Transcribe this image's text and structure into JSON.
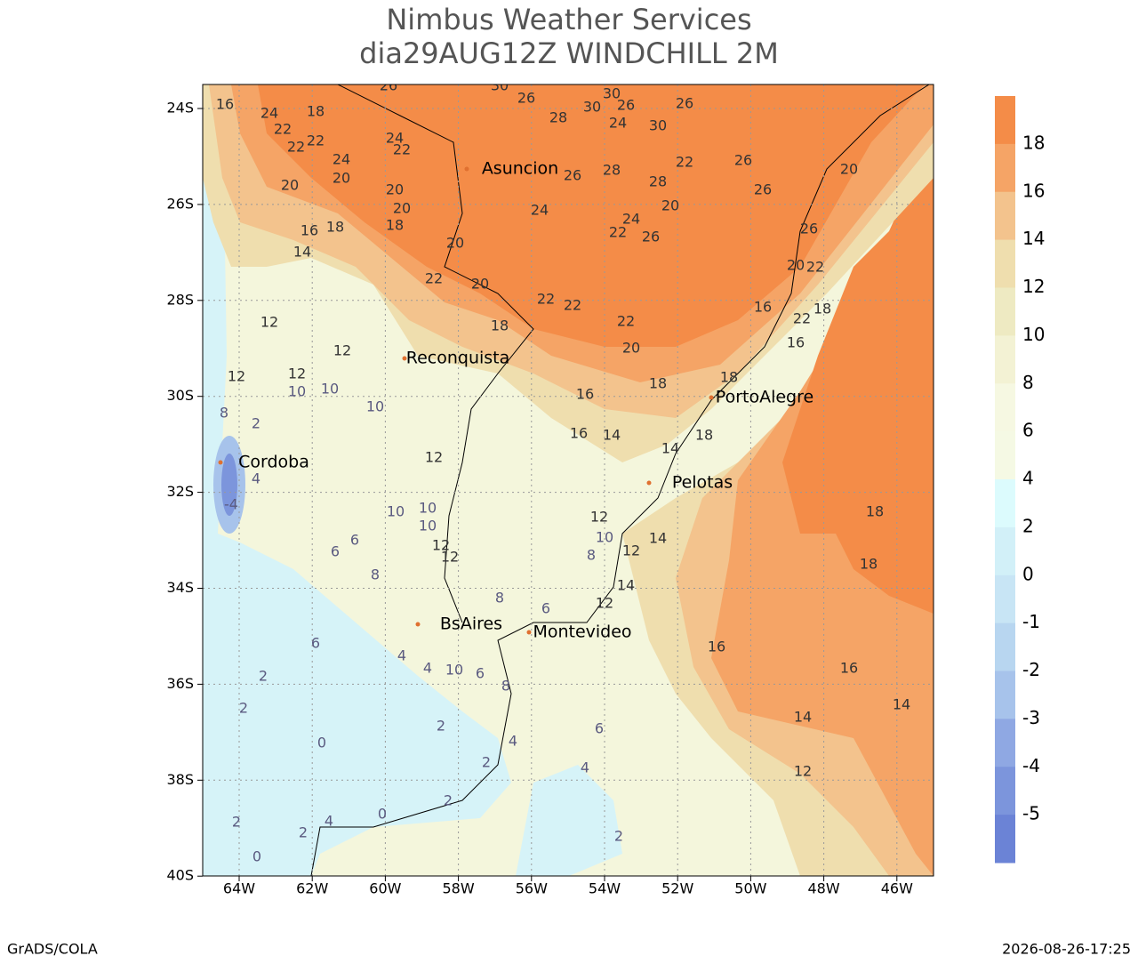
{
  "header": {
    "title": "Nimbus Weather Services",
    "subtitle": "dia29AUG12Z WINDCHILL 2M"
  },
  "map": {
    "lat_ticks": [
      "24S",
      "26S",
      "28S",
      "30S",
      "32S",
      "34S",
      "36S",
      "38S",
      "40S"
    ],
    "lon_ticks": [
      "64W",
      "62W",
      "60W",
      "58W",
      "56W",
      "54W",
      "52W",
      "50W",
      "48W",
      "46W"
    ],
    "cities": [
      "Asuncion",
      "Reconquista",
      "PortoAlegre",
      "Cordoba",
      "Pelotas",
      "BsAires",
      "Montevideo"
    ],
    "contour_labels": [
      26,
      30,
      26,
      30,
      30,
      26,
      24,
      26,
      30,
      28,
      24,
      18,
      16,
      22,
      22,
      22,
      24,
      22,
      24,
      20,
      20,
      20,
      20,
      18,
      24,
      26,
      28,
      28,
      22,
      26,
      26,
      24,
      22,
      26,
      20,
      20,
      22,
      20,
      22,
      22,
      18,
      22,
      20,
      16,
      22,
      18,
      16,
      20,
      26,
      20,
      22,
      16,
      18,
      14,
      12,
      12,
      12,
      12,
      10,
      10,
      10,
      8,
      12,
      16,
      18,
      18,
      16,
      14,
      14,
      18,
      10,
      10,
      10,
      12,
      12,
      6,
      6,
      8,
      12,
      10,
      14,
      12,
      8,
      14,
      12,
      8,
      6,
      6,
      4,
      4,
      10,
      6,
      8,
      2,
      2,
      2,
      4,
      6,
      0,
      4,
      2,
      2,
      0,
      4,
      2,
      2,
      2,
      0,
      16,
      16,
      14,
      14,
      12,
      18,
      18,
      -4,
      4,
      2
    ]
  },
  "colorbar": {
    "labels": [
      18,
      16,
      14,
      12,
      10,
      8,
      6,
      4,
      2,
      0,
      -1,
      -2,
      -3,
      -4,
      -5
    ],
    "colors": [
      "#f48c48",
      "#f5a466",
      "#f3c38d",
      "#efdeae",
      "#eeeac2",
      "#f3f2d4",
      "#f6f8e2",
      "#f5f9e4",
      "#dcfbfd",
      "#d2f0f8",
      "#c8e5f5",
      "#b8d6f0",
      "#a7c3eb",
      "#8fa8e3",
      "#7c95dc",
      "#6b83d6"
    ]
  },
  "footer": {
    "left": "GrADS/COLA",
    "right": "2026-08-26-17:25"
  }
}
